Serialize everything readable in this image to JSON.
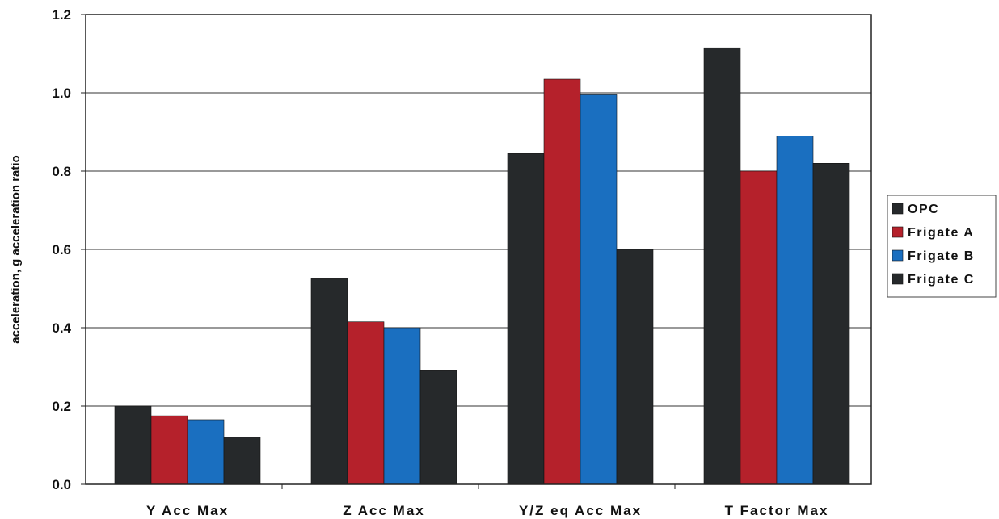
{
  "chart_data": {
    "type": "bar",
    "title": "",
    "ylabel": "acceleration, g    acceleration ratio",
    "xlabel": "",
    "categories": [
      "Y Acc Max",
      "Z Acc Max",
      "Y/Z eq Acc Max",
      "T Factor Max"
    ],
    "series": [
      {
        "name": "OPC",
        "color": "#26292b",
        "values": [
          0.2,
          0.525,
          0.845,
          1.115
        ]
      },
      {
        "name": "Frigate A",
        "color": "#b5212b",
        "values": [
          0.175,
          0.415,
          1.035,
          0.8
        ]
      },
      {
        "name": "Frigate B",
        "color": "#1a6fc0",
        "values": [
          0.165,
          0.4,
          0.995,
          0.89
        ]
      },
      {
        "name": "Frigate C",
        "color": "#26292b",
        "values": [
          0.12,
          0.29,
          0.6,
          0.82
        ]
      }
    ],
    "ylim": [
      0.0,
      1.2
    ],
    "yticks": [
      "0.0",
      "0.2",
      "0.4",
      "0.6",
      "0.8",
      "1.0",
      "1.2"
    ],
    "grid": true,
    "legend_position": "right"
  }
}
